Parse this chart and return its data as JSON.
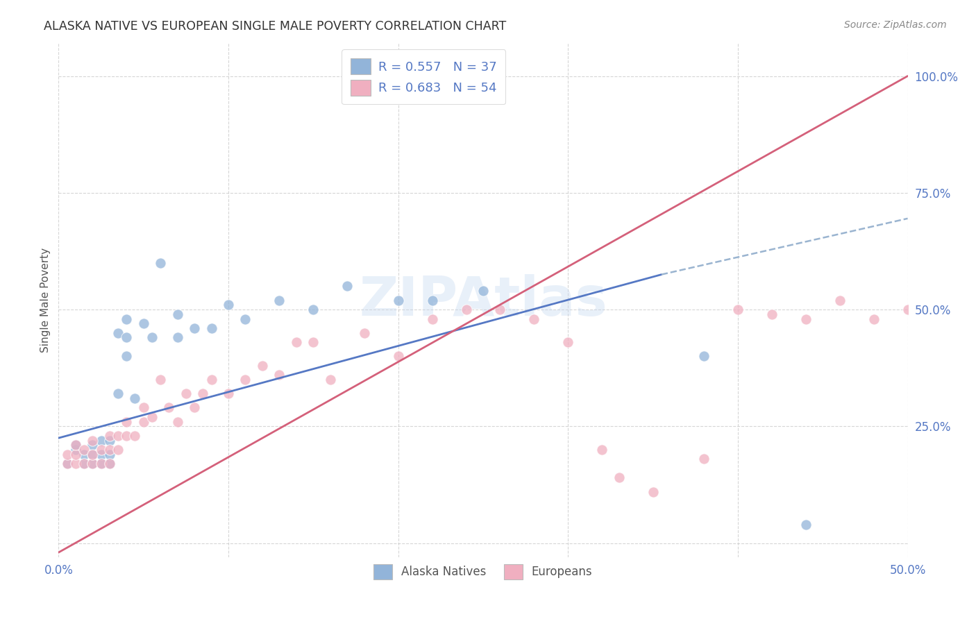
{
  "title": "ALASKA NATIVE VS EUROPEAN SINGLE MALE POVERTY CORRELATION CHART",
  "source": "Source: ZipAtlas.com",
  "ylabel": "Single Male Poverty",
  "xlim": [
    0.0,
    0.5
  ],
  "ylim": [
    -0.03,
    1.07
  ],
  "watermark": "ZIPAtlas",
  "alaska_color": "#92b4d9",
  "european_color": "#f0afc0",
  "alaska_line_color": "#5578c4",
  "european_line_color": "#d4607a",
  "dashed_line_color": "#9ab4d0",
  "title_color": "#333333",
  "source_color": "#888888",
  "axis_label_color": "#555555",
  "tick_label_color": "#5578c4",
  "grid_color": "#cccccc",
  "alaska_x": [
    0.005,
    0.01,
    0.01,
    0.015,
    0.015,
    0.02,
    0.02,
    0.02,
    0.025,
    0.025,
    0.025,
    0.03,
    0.03,
    0.03,
    0.035,
    0.035,
    0.04,
    0.04,
    0.04,
    0.045,
    0.05,
    0.055,
    0.06,
    0.07,
    0.07,
    0.08,
    0.09,
    0.1,
    0.11,
    0.13,
    0.15,
    0.17,
    0.2,
    0.22,
    0.25,
    0.38,
    0.44
  ],
  "alaska_y": [
    0.17,
    0.2,
    0.21,
    0.17,
    0.19,
    0.17,
    0.19,
    0.21,
    0.17,
    0.19,
    0.22,
    0.17,
    0.19,
    0.22,
    0.32,
    0.45,
    0.4,
    0.44,
    0.48,
    0.31,
    0.47,
    0.44,
    0.6,
    0.44,
    0.49,
    0.46,
    0.46,
    0.51,
    0.48,
    0.52,
    0.5,
    0.55,
    0.52,
    0.52,
    0.54,
    0.4,
    0.04
  ],
  "european_x": [
    0.005,
    0.005,
    0.01,
    0.01,
    0.01,
    0.015,
    0.015,
    0.02,
    0.02,
    0.02,
    0.025,
    0.025,
    0.03,
    0.03,
    0.03,
    0.035,
    0.035,
    0.04,
    0.04,
    0.045,
    0.05,
    0.05,
    0.055,
    0.06,
    0.065,
    0.07,
    0.075,
    0.08,
    0.085,
    0.09,
    0.1,
    0.11,
    0.12,
    0.13,
    0.14,
    0.15,
    0.16,
    0.18,
    0.2,
    0.22,
    0.24,
    0.26,
    0.28,
    0.3,
    0.32,
    0.33,
    0.35,
    0.38,
    0.4,
    0.42,
    0.44,
    0.46,
    0.48,
    0.5
  ],
  "european_y": [
    0.17,
    0.19,
    0.17,
    0.19,
    0.21,
    0.17,
    0.2,
    0.17,
    0.19,
    0.22,
    0.17,
    0.2,
    0.17,
    0.2,
    0.23,
    0.2,
    0.23,
    0.23,
    0.26,
    0.23,
    0.26,
    0.29,
    0.27,
    0.35,
    0.29,
    0.26,
    0.32,
    0.29,
    0.32,
    0.35,
    0.32,
    0.35,
    0.38,
    0.36,
    0.43,
    0.43,
    0.35,
    0.45,
    0.4,
    0.48,
    0.5,
    0.5,
    0.48,
    0.43,
    0.2,
    0.14,
    0.11,
    0.18,
    0.5,
    0.49,
    0.48,
    0.52,
    0.48,
    0.5
  ],
  "alaska_line_x": [
    0.0,
    0.355
  ],
  "alaska_line_y": [
    0.225,
    0.575
  ],
  "dashed_line_x": [
    0.355,
    0.5
  ],
  "dashed_line_y": [
    0.575,
    0.695
  ],
  "european_line_x": [
    0.0,
    0.5
  ],
  "european_line_y": [
    -0.02,
    1.0
  ]
}
